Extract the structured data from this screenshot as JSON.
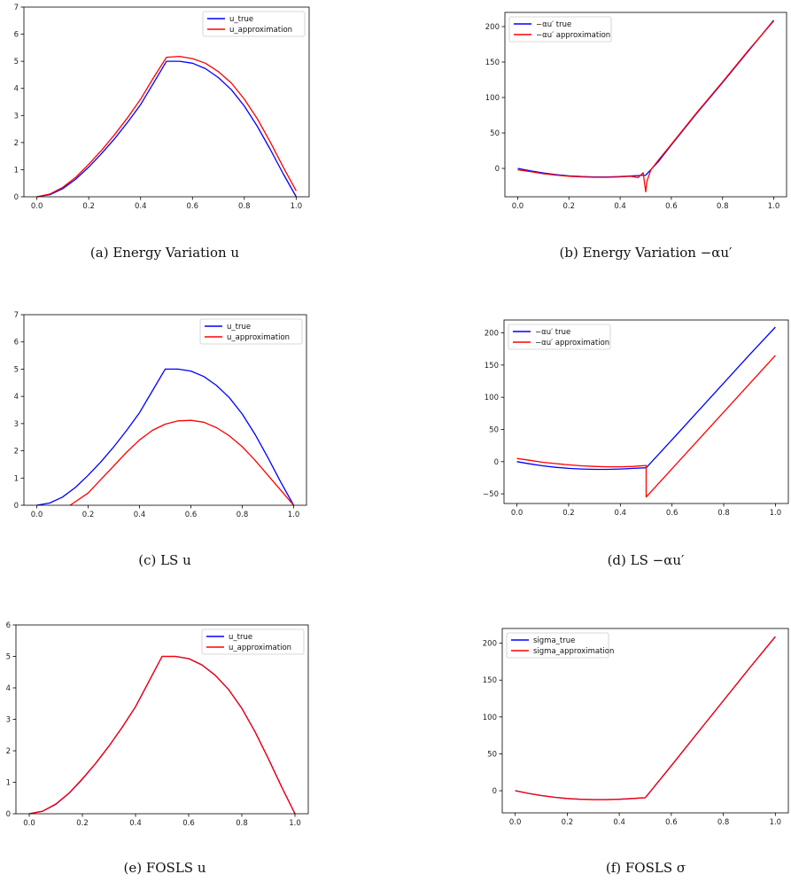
{
  "chart_data": [
    {
      "id": "a",
      "type": "line",
      "caption": "(a) Energy Variation u",
      "xlim": [
        -0.05,
        1.05
      ],
      "ylim": [
        0,
        7
      ],
      "xticks": [
        "0.0",
        "0.2",
        "0.4",
        "0.6",
        "0.8",
        "1.0"
      ],
      "yticks": [
        "0",
        "1",
        "2",
        "3",
        "4",
        "5",
        "6",
        "7"
      ],
      "legend_position": "top-right",
      "series": [
        {
          "name": "u_true",
          "color": "#0000ff",
          "x": [
            0,
            0.05,
            0.1,
            0.15,
            0.2,
            0.25,
            0.3,
            0.35,
            0.4,
            0.45,
            0.5,
            0.55,
            0.6,
            0.65,
            0.7,
            0.75,
            0.8,
            0.85,
            0.9,
            0.95,
            1.0
          ],
          "y": [
            0,
            0.08,
            0.3,
            0.65,
            1.1,
            1.6,
            2.15,
            2.75,
            3.4,
            4.2,
            5.0,
            5.0,
            4.93,
            4.73,
            4.4,
            3.95,
            3.35,
            2.6,
            1.75,
            0.85,
            0.0
          ]
        },
        {
          "name": "u_approximation",
          "color": "#ff0000",
          "x": [
            0,
            0.05,
            0.1,
            0.15,
            0.2,
            0.25,
            0.3,
            0.35,
            0.4,
            0.45,
            0.5,
            0.55,
            0.6,
            0.65,
            0.7,
            0.75,
            0.8,
            0.85,
            0.9,
            0.95,
            1.0
          ],
          "y": [
            0,
            0.1,
            0.35,
            0.72,
            1.2,
            1.72,
            2.3,
            2.92,
            3.6,
            4.4,
            5.15,
            5.18,
            5.1,
            4.93,
            4.62,
            4.2,
            3.6,
            2.88,
            2.02,
            1.1,
            0.22
          ]
        }
      ]
    },
    {
      "id": "b",
      "type": "line",
      "caption": "(b) Energy Variation −αu′",
      "xlim": [
        -0.05,
        1.05
      ],
      "ylim": [
        -40,
        220
      ],
      "xticks": [
        "0.0",
        "0.2",
        "0.4",
        "0.6",
        "0.8",
        "1.0"
      ],
      "yticks": [
        "0",
        "50",
        "100",
        "150",
        "200"
      ],
      "legend_position": "top-left",
      "series": [
        {
          "name": "−αu′ true",
          "color": "#0000ff",
          "x": [
            0,
            0.05,
            0.1,
            0.15,
            0.2,
            0.25,
            0.3,
            0.35,
            0.4,
            0.45,
            0.5,
            0.5,
            0.55,
            0.6,
            0.7,
            0.8,
            0.9,
            1.0
          ],
          "y": [
            0,
            -3.5,
            -6.5,
            -8.8,
            -10.5,
            -11.5,
            -12.0,
            -12.0,
            -11.5,
            -10.5,
            -9.5,
            -9.5,
            10,
            33,
            78,
            121,
            165,
            209
          ]
        },
        {
          "name": "−αu′ approximation",
          "color": "#ff0000",
          "x": [
            0,
            0.05,
            0.1,
            0.15,
            0.2,
            0.25,
            0.3,
            0.35,
            0.4,
            0.44,
            0.47,
            0.49,
            0.5,
            0.505,
            0.52,
            0.55,
            0.6,
            0.7,
            0.8,
            0.9,
            1.0
          ],
          "y": [
            -2,
            -4.5,
            -7.5,
            -9.5,
            -11,
            -12,
            -12.5,
            -12.5,
            -12,
            -11,
            -13,
            -6,
            -33,
            -18,
            -2,
            12,
            34,
            79,
            122,
            166,
            208
          ]
        }
      ]
    },
    {
      "id": "c",
      "type": "line",
      "caption": "(c) LS u",
      "xlim": [
        -0.05,
        1.05
      ],
      "ylim": [
        0,
        7
      ],
      "xticks": [
        "0.0",
        "0.2",
        "0.4",
        "0.6",
        "0.8",
        "1.0"
      ],
      "yticks": [
        "0",
        "1",
        "2",
        "3",
        "4",
        "5",
        "6",
        "7"
      ],
      "legend_position": "top-right",
      "series": [
        {
          "name": "u_true",
          "color": "#0000ff",
          "x": [
            0,
            0.05,
            0.1,
            0.15,
            0.2,
            0.25,
            0.3,
            0.35,
            0.4,
            0.45,
            0.5,
            0.55,
            0.6,
            0.65,
            0.7,
            0.75,
            0.8,
            0.85,
            0.9,
            0.95,
            1.0
          ],
          "y": [
            0,
            0.08,
            0.3,
            0.65,
            1.1,
            1.6,
            2.15,
            2.75,
            3.4,
            4.2,
            5.0,
            5.0,
            4.93,
            4.73,
            4.4,
            3.95,
            3.35,
            2.6,
            1.75,
            0.85,
            0.0
          ]
        },
        {
          "name": "u_approximation",
          "color": "#ff0000",
          "x": [
            0.13,
            0.2,
            0.25,
            0.3,
            0.35,
            0.4,
            0.45,
            0.5,
            0.55,
            0.6,
            0.65,
            0.7,
            0.75,
            0.8,
            0.85,
            0.9,
            0.95,
            1.0
          ],
          "y": [
            0,
            0.45,
            0.95,
            1.45,
            1.95,
            2.4,
            2.75,
            2.98,
            3.1,
            3.12,
            3.05,
            2.85,
            2.55,
            2.15,
            1.65,
            1.1,
            0.55,
            0.0
          ]
        }
      ]
    },
    {
      "id": "d",
      "type": "line",
      "caption": "(d) LS −αu′",
      "xlim": [
        -0.05,
        1.05
      ],
      "ylim": [
        -65,
        220
      ],
      "xticks": [
        "0.0",
        "0.2",
        "0.4",
        "0.6",
        "0.8",
        "1.0"
      ],
      "yticks": [
        "−50",
        "0",
        "50",
        "100",
        "150",
        "200"
      ],
      "legend_position": "top-left",
      "series": [
        {
          "name": "−αu′ true",
          "color": "#0000ff",
          "x": [
            0,
            0.05,
            0.1,
            0.15,
            0.2,
            0.25,
            0.3,
            0.35,
            0.4,
            0.45,
            0.5,
            0.5,
            0.6,
            0.7,
            0.8,
            0.9,
            1.0
          ],
          "y": [
            0,
            -3.5,
            -6.5,
            -8.8,
            -10.5,
            -11.5,
            -12.0,
            -12.0,
            -11.5,
            -10.5,
            -9.5,
            -9.5,
            34,
            78,
            122,
            166,
            209
          ]
        },
        {
          "name": "−αu′ approximation",
          "color": "#ff0000",
          "x": [
            0,
            0.05,
            0.1,
            0.15,
            0.2,
            0.25,
            0.3,
            0.35,
            0.4,
            0.45,
            0.5,
            0.5,
            0.6,
            0.7,
            0.8,
            0.9,
            1.0
          ],
          "y": [
            5,
            2,
            -1,
            -3,
            -5,
            -6.5,
            -7.5,
            -8,
            -8,
            -7.5,
            -6,
            -55,
            -11,
            33,
            77,
            121,
            165
          ]
        }
      ]
    },
    {
      "id": "e",
      "type": "line",
      "caption": "(e) FOSLS u",
      "xlim": [
        -0.05,
        1.05
      ],
      "ylim": [
        0,
        6
      ],
      "xticks": [
        "0.0",
        "0.2",
        "0.4",
        "0.6",
        "0.8",
        "1.0"
      ],
      "yticks": [
        "0",
        "1",
        "2",
        "3",
        "4",
        "5",
        "6"
      ],
      "legend_position": "top-right",
      "series": [
        {
          "name": "u_true",
          "color": "#0000ff",
          "x": [
            0,
            0.05,
            0.1,
            0.15,
            0.2,
            0.25,
            0.3,
            0.35,
            0.4,
            0.45,
            0.5,
            0.55,
            0.6,
            0.65,
            0.7,
            0.75,
            0.8,
            0.85,
            0.9,
            0.95,
            1.0
          ],
          "y": [
            0,
            0.08,
            0.3,
            0.65,
            1.1,
            1.6,
            2.15,
            2.75,
            3.4,
            4.2,
            5.0,
            5.0,
            4.93,
            4.73,
            4.4,
            3.95,
            3.35,
            2.6,
            1.75,
            0.85,
            0.0
          ]
        },
        {
          "name": "u_approximation",
          "color": "#ff0000",
          "x": [
            0,
            0.05,
            0.1,
            0.15,
            0.2,
            0.25,
            0.3,
            0.35,
            0.4,
            0.45,
            0.5,
            0.55,
            0.6,
            0.65,
            0.7,
            0.75,
            0.8,
            0.85,
            0.9,
            0.95,
            1.0
          ],
          "y": [
            0,
            0.08,
            0.31,
            0.66,
            1.11,
            1.6,
            2.15,
            2.75,
            3.4,
            4.2,
            5.0,
            5.0,
            4.93,
            4.73,
            4.4,
            3.95,
            3.35,
            2.6,
            1.75,
            0.85,
            0.0
          ]
        }
      ]
    },
    {
      "id": "f",
      "type": "line",
      "caption": "(f) FOSLS σ",
      "xlim": [
        -0.05,
        1.05
      ],
      "ylim": [
        -30,
        220
      ],
      "xticks": [
        "0.0",
        "0.2",
        "0.4",
        "0.6",
        "0.8",
        "1.0"
      ],
      "yticks": [
        "0",
        "50",
        "100",
        "150",
        "200"
      ],
      "legend_position": "top-left",
      "series": [
        {
          "name": "sigma_true",
          "color": "#0000ff",
          "x": [
            0,
            0.05,
            0.1,
            0.15,
            0.2,
            0.25,
            0.3,
            0.35,
            0.4,
            0.45,
            0.5,
            0.6,
            0.7,
            0.8,
            0.9,
            1.0
          ],
          "y": [
            0,
            -3.5,
            -6.5,
            -8.8,
            -10.5,
            -11.5,
            -12.0,
            -12.0,
            -11.5,
            -10.5,
            -9.5,
            34,
            78,
            122,
            166,
            209
          ]
        },
        {
          "name": "sigma_approximation",
          "color": "#ff0000",
          "x": [
            0,
            0.05,
            0.1,
            0.15,
            0.2,
            0.25,
            0.3,
            0.35,
            0.4,
            0.45,
            0.5,
            0.6,
            0.7,
            0.8,
            0.9,
            1.0
          ],
          "y": [
            0,
            -3.6,
            -6.6,
            -8.9,
            -10.6,
            -11.6,
            -12.1,
            -12.1,
            -11.6,
            -10.6,
            -9.6,
            34,
            78,
            122,
            166,
            209
          ]
        }
      ]
    }
  ]
}
